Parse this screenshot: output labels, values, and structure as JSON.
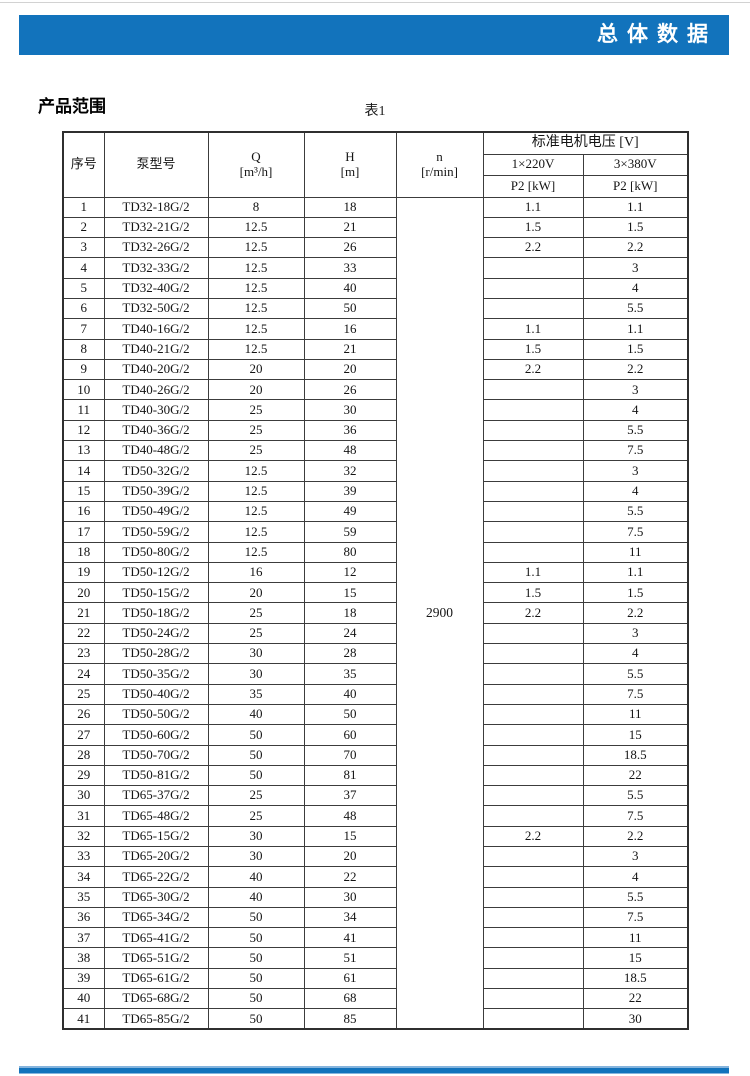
{
  "page": {
    "banner_title": "总体数据",
    "section_title": "产品范围",
    "table_caption": "表1",
    "accent_color": "#1273bc"
  },
  "table": {
    "headers": {
      "index": "序号",
      "model": "泵型号",
      "q": "Q\n[m³/h]",
      "h": "H\n[m]",
      "n": "n\n[r/min]",
      "voltage_group": "标准电机电压 [V]",
      "v220": "1×220V",
      "v380": "3×380V",
      "p2_220": "P2 [kW]",
      "p2_380": "P2 [kW]"
    },
    "n_value": "2900",
    "rows": [
      [
        "1",
        "TD32-18G/2",
        "8",
        "18",
        "1.1",
        "1.1"
      ],
      [
        "2",
        "TD32-21G/2",
        "12.5",
        "21",
        "1.5",
        "1.5"
      ],
      [
        "3",
        "TD32-26G/2",
        "12.5",
        "26",
        "2.2",
        "2.2"
      ],
      [
        "4",
        "TD32-33G/2",
        "12.5",
        "33",
        "",
        "3"
      ],
      [
        "5",
        "TD32-40G/2",
        "12.5",
        "40",
        "",
        "4"
      ],
      [
        "6",
        "TD32-50G/2",
        "12.5",
        "50",
        "",
        "5.5"
      ],
      [
        "7",
        "TD40-16G/2",
        "12.5",
        "16",
        "1.1",
        "1.1"
      ],
      [
        "8",
        "TD40-21G/2",
        "12.5",
        "21",
        "1.5",
        "1.5"
      ],
      [
        "9",
        "TD40-20G/2",
        "20",
        "20",
        "2.2",
        "2.2"
      ],
      [
        "10",
        "TD40-26G/2",
        "20",
        "26",
        "",
        "3"
      ],
      [
        "11",
        "TD40-30G/2",
        "25",
        "30",
        "",
        "4"
      ],
      [
        "12",
        "TD40-36G/2",
        "25",
        "36",
        "",
        "5.5"
      ],
      [
        "13",
        "TD40-48G/2",
        "25",
        "48",
        "",
        "7.5"
      ],
      [
        "14",
        "TD50-32G/2",
        "12.5",
        "32",
        "",
        "3"
      ],
      [
        "15",
        "TD50-39G/2",
        "12.5",
        "39",
        "",
        "4"
      ],
      [
        "16",
        "TD50-49G/2",
        "12.5",
        "49",
        "",
        "5.5"
      ],
      [
        "17",
        "TD50-59G/2",
        "12.5",
        "59",
        "",
        "7.5"
      ],
      [
        "18",
        "TD50-80G/2",
        "12.5",
        "80",
        "",
        "11"
      ],
      [
        "19",
        "TD50-12G/2",
        "16",
        "12",
        "1.1",
        "1.1"
      ],
      [
        "20",
        "TD50-15G/2",
        "20",
        "15",
        "1.5",
        "1.5"
      ],
      [
        "21",
        "TD50-18G/2",
        "25",
        "18",
        "2.2",
        "2.2"
      ],
      [
        "22",
        "TD50-24G/2",
        "25",
        "24",
        "",
        "3"
      ],
      [
        "23",
        "TD50-28G/2",
        "30",
        "28",
        "",
        "4"
      ],
      [
        "24",
        "TD50-35G/2",
        "30",
        "35",
        "",
        "5.5"
      ],
      [
        "25",
        "TD50-40G/2",
        "35",
        "40",
        "",
        "7.5"
      ],
      [
        "26",
        "TD50-50G/2",
        "40",
        "50",
        "",
        "11"
      ],
      [
        "27",
        "TD50-60G/2",
        "50",
        "60",
        "",
        "15"
      ],
      [
        "28",
        "TD50-70G/2",
        "50",
        "70",
        "",
        "18.5"
      ],
      [
        "29",
        "TD50-81G/2",
        "50",
        "81",
        "",
        "22"
      ],
      [
        "30",
        "TD65-37G/2",
        "25",
        "37",
        "",
        "5.5"
      ],
      [
        "31",
        "TD65-48G/2",
        "25",
        "48",
        "",
        "7.5"
      ],
      [
        "32",
        "TD65-15G/2",
        "30",
        "15",
        "2.2",
        "2.2"
      ],
      [
        "33",
        "TD65-20G/2",
        "30",
        "20",
        "",
        "3"
      ],
      [
        "34",
        "TD65-22G/2",
        "40",
        "22",
        "",
        "4"
      ],
      [
        "35",
        "TD65-30G/2",
        "40",
        "30",
        "",
        "5.5"
      ],
      [
        "36",
        "TD65-34G/2",
        "50",
        "34",
        "",
        "7.5"
      ],
      [
        "37",
        "TD65-41G/2",
        "50",
        "41",
        "",
        "11"
      ],
      [
        "38",
        "TD65-51G/2",
        "50",
        "51",
        "",
        "15"
      ],
      [
        "39",
        "TD65-61G/2",
        "50",
        "61",
        "",
        "18.5"
      ],
      [
        "40",
        "TD65-68G/2",
        "50",
        "68",
        "",
        "22"
      ],
      [
        "41",
        "TD65-85G/2",
        "50",
        "85",
        "",
        "30"
      ]
    ]
  }
}
